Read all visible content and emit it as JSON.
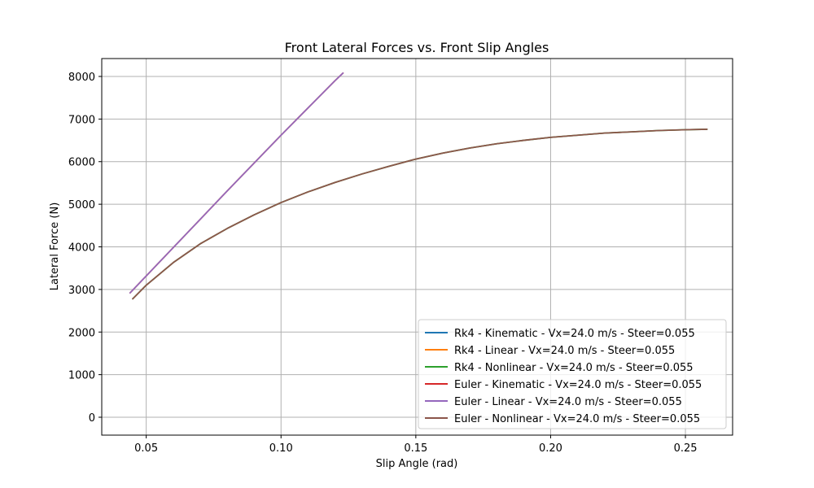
{
  "chart_data": {
    "type": "line",
    "title": "Front Lateral Forces vs. Front Slip Angles",
    "xlabel": "Slip Angle (rad)",
    "ylabel": "Lateral Force (N)",
    "xlim": [
      0.0335,
      0.2675
    ],
    "ylim": [
      -420,
      8420
    ],
    "xticks": [
      0.05,
      0.1,
      0.15,
      0.2,
      0.25
    ],
    "xtick_labels": [
      "0.05",
      "0.10",
      "0.15",
      "0.20",
      "0.25"
    ],
    "yticks": [
      0,
      1000,
      2000,
      3000,
      4000,
      5000,
      6000,
      7000,
      8000
    ],
    "ytick_labels": [
      "0",
      "1000",
      "2000",
      "3000",
      "4000",
      "5000",
      "6000",
      "7000",
      "8000"
    ],
    "grid": true,
    "legend_position": "lower-right",
    "series": [
      {
        "name": "Rk4 - Kinematic - Vx=24.0 m/s - Steer=0.055",
        "color": "#1f77b4",
        "x": [],
        "y": []
      },
      {
        "name": "Rk4 - Linear - Vx=24.0 m/s - Steer=0.055",
        "color": "#ff7f0e",
        "x": [
          0.044,
          0.06,
          0.08,
          0.1,
          0.12,
          0.123
        ],
        "y": [
          2920,
          3980,
          5310,
          6620,
          7900,
          8080
        ]
      },
      {
        "name": "Rk4 - Nonlinear - Vx=24.0 m/s - Steer=0.055",
        "color": "#2ca02c",
        "x": [
          0.045,
          0.05,
          0.06,
          0.07,
          0.08,
          0.09,
          0.1,
          0.11,
          0.12,
          0.13,
          0.14,
          0.15,
          0.16,
          0.17,
          0.18,
          0.19,
          0.2,
          0.21,
          0.22,
          0.23,
          0.24,
          0.25,
          0.258
        ],
        "y": [
          2780,
          3100,
          3630,
          4070,
          4430,
          4750,
          5040,
          5290,
          5510,
          5710,
          5890,
          6060,
          6200,
          6320,
          6420,
          6500,
          6570,
          6620,
          6670,
          6700,
          6730,
          6750,
          6760
        ]
      },
      {
        "name": "Euler - Kinematic - Vx=24.0 m/s - Steer=0.055",
        "color": "#d62728",
        "x": [],
        "y": []
      },
      {
        "name": "Euler - Linear - Vx=24.0 m/s - Steer=0.055",
        "color": "#9467bd",
        "x": [
          0.044,
          0.06,
          0.08,
          0.1,
          0.12,
          0.123
        ],
        "y": [
          2920,
          3980,
          5310,
          6620,
          7900,
          8080
        ]
      },
      {
        "name": "Euler - Nonlinear - Vx=24.0 m/s - Steer=0.055",
        "color": "#8c564b",
        "x": [
          0.045,
          0.05,
          0.06,
          0.07,
          0.08,
          0.09,
          0.1,
          0.11,
          0.12,
          0.13,
          0.14,
          0.15,
          0.16,
          0.17,
          0.18,
          0.19,
          0.2,
          0.21,
          0.22,
          0.23,
          0.24,
          0.25,
          0.258
        ],
        "y": [
          2780,
          3100,
          3630,
          4070,
          4430,
          4750,
          5040,
          5290,
          5510,
          5710,
          5890,
          6060,
          6200,
          6320,
          6420,
          6500,
          6570,
          6620,
          6670,
          6700,
          6730,
          6750,
          6760
        ]
      }
    ]
  }
}
